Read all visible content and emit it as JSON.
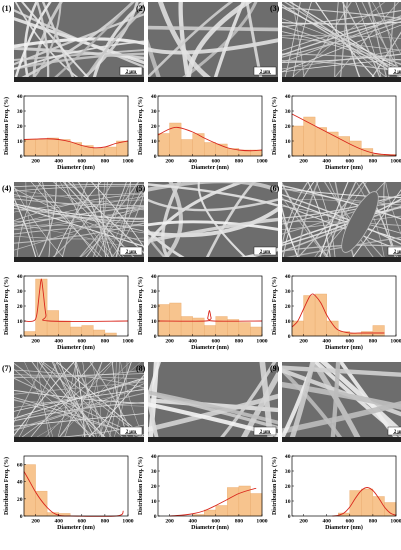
{
  "chart_data": [
    {
      "panel": "(1)",
      "type": "bar",
      "xlabel": "Diameter (nm)",
      "ylabel": "Distribution Freq. (%)",
      "xlim": [
        100,
        1000
      ],
      "ylim": [
        0,
        40
      ],
      "xticks": [
        200,
        400,
        600,
        800,
        1000
      ],
      "yticks": [
        0,
        10,
        20,
        30,
        40
      ],
      "bins": [
        [
          100,
          200,
          11
        ],
        [
          200,
          300,
          11
        ],
        [
          300,
          400,
          12
        ],
        [
          400,
          500,
          11
        ],
        [
          500,
          600,
          9
        ],
        [
          600,
          700,
          7
        ],
        [
          700,
          800,
          5
        ],
        [
          800,
          900,
          6
        ],
        [
          900,
          1000,
          10
        ]
      ],
      "fit": [
        [
          100,
          11
        ],
        [
          200,
          11.3
        ],
        [
          300,
          11.5
        ],
        [
          400,
          11
        ],
        [
          500,
          9.5
        ],
        [
          600,
          7
        ],
        [
          700,
          5.5
        ],
        [
          800,
          6
        ],
        [
          900,
          8.5
        ],
        [
          1000,
          10
        ]
      ],
      "scale_bar": "2 μm"
    },
    {
      "panel": "(2)",
      "type": "bar",
      "xlabel": "Diameter (nm)",
      "ylabel": "Distribution Freq. (%)",
      "xlim": [
        100,
        1000
      ],
      "ylim": [
        0,
        40
      ],
      "xticks": [
        200,
        400,
        600,
        800,
        1000
      ],
      "yticks": [
        0,
        10,
        20,
        30,
        40
      ],
      "bins": [
        [
          100,
          200,
          15
        ],
        [
          200,
          300,
          22
        ],
        [
          300,
          400,
          11
        ],
        [
          400,
          500,
          15
        ],
        [
          500,
          600,
          9
        ],
        [
          600,
          700,
          8
        ],
        [
          700,
          800,
          5
        ],
        [
          800,
          900,
          4
        ],
        [
          900,
          1000,
          4
        ]
      ],
      "fit": [
        [
          100,
          14
        ],
        [
          200,
          18
        ],
        [
          275,
          19
        ],
        [
          400,
          16
        ],
        [
          500,
          12
        ],
        [
          600,
          8.5
        ],
        [
          700,
          5.5
        ],
        [
          800,
          4
        ],
        [
          900,
          3.5
        ],
        [
          1000,
          4
        ]
      ],
      "scale_bar": "2 μm"
    },
    {
      "panel": "(3)",
      "type": "bar",
      "xlabel": "Diameter (nm)",
      "ylabel": "Distribution Freq. (%)",
      "xlim": [
        100,
        1000
      ],
      "ylim": [
        0,
        40
      ],
      "xticks": [
        200,
        400,
        600,
        800,
        1000
      ],
      "yticks": [
        0,
        10,
        20,
        30,
        40
      ],
      "bins": [
        [
          100,
          200,
          20
        ],
        [
          200,
          300,
          26
        ],
        [
          300,
          400,
          19
        ],
        [
          400,
          500,
          16
        ],
        [
          500,
          600,
          13
        ],
        [
          600,
          700,
          10
        ],
        [
          700,
          800,
          5
        ],
        [
          800,
          900,
          1
        ],
        [
          900,
          1000,
          1
        ]
      ],
      "fit": [
        [
          100,
          28
        ],
        [
          200,
          24
        ],
        [
          300,
          20
        ],
        [
          400,
          16
        ],
        [
          500,
          12
        ],
        [
          600,
          8
        ],
        [
          700,
          4.5
        ],
        [
          800,
          2
        ],
        [
          900,
          1
        ],
        [
          1000,
          0.5
        ]
      ],
      "scale_bar": "2 μm"
    },
    {
      "panel": "(4)",
      "type": "bar",
      "xlabel": "Diameter (nm)",
      "ylabel": "Distribution Freq. (%)",
      "xlim": [
        100,
        1000
      ],
      "ylim": [
        0,
        40
      ],
      "xticks": [
        200,
        400,
        600,
        800,
        1000
      ],
      "yticks": [
        0,
        10,
        20,
        30,
        40
      ],
      "bins": [
        [
          100,
          200,
          3
        ],
        [
          200,
          300,
          38
        ],
        [
          300,
          400,
          17
        ],
        [
          400,
          500,
          10
        ],
        [
          500,
          600,
          6
        ],
        [
          600,
          700,
          7
        ],
        [
          700,
          800,
          4
        ],
        [
          800,
          900,
          2
        ],
        [
          900,
          1000,
          0
        ]
      ],
      "fit": [
        [
          100,
          10
        ],
        [
          180,
          10
        ],
        [
          210,
          14
        ],
        [
          235,
          30
        ],
        [
          250,
          38
        ],
        [
          265,
          30
        ],
        [
          290,
          14
        ],
        [
          320,
          10
        ],
        [
          1000,
          10
        ]
      ],
      "scale_bar": "2 μm"
    },
    {
      "panel": "(5)",
      "type": "bar",
      "xlabel": "Diameter (nm)",
      "ylabel": "Distribution Freq. (%)",
      "xlim": [
        100,
        1000
      ],
      "ylim": [
        0,
        40
      ],
      "xticks": [
        200,
        400,
        600,
        800,
        1000
      ],
      "yticks": [
        0,
        10,
        20,
        30,
        40
      ],
      "bins": [
        [
          100,
          200,
          21
        ],
        [
          200,
          300,
          22
        ],
        [
          300,
          400,
          13
        ],
        [
          400,
          500,
          12
        ],
        [
          500,
          600,
          7
        ],
        [
          600,
          700,
          13
        ],
        [
          700,
          800,
          11
        ],
        [
          800,
          900,
          9
        ],
        [
          900,
          1000,
          6
        ]
      ],
      "fit": [
        [
          100,
          10
        ],
        [
          510,
          10
        ],
        [
          530,
          12
        ],
        [
          545,
          17
        ],
        [
          560,
          12
        ],
        [
          580,
          10
        ],
        [
          1000,
          10
        ]
      ],
      "scale_bar": "2 μm"
    },
    {
      "panel": "(6)",
      "type": "bar",
      "xlabel": "Diameter (nm)",
      "ylabel": "Distribution Freq. (%)",
      "xlim": [
        100,
        1000
      ],
      "ylim": [
        0,
        40
      ],
      "xticks": [
        200,
        400,
        600,
        800,
        1000
      ],
      "yticks": [
        0,
        10,
        20,
        30,
        40
      ],
      "bins": [
        [
          100,
          200,
          10
        ],
        [
          200,
          300,
          27
        ],
        [
          300,
          400,
          28
        ],
        [
          400,
          500,
          10
        ],
        [
          500,
          600,
          3
        ],
        [
          600,
          700,
          2
        ],
        [
          700,
          800,
          3
        ],
        [
          800,
          900,
          7
        ],
        [
          900,
          1000,
          0
        ]
      ],
      "fit": [
        [
          100,
          6
        ],
        [
          150,
          10
        ],
        [
          200,
          18
        ],
        [
          250,
          26
        ],
        [
          275,
          28
        ],
        [
          300,
          27
        ],
        [
          350,
          22
        ],
        [
          400,
          14
        ],
        [
          450,
          8
        ],
        [
          500,
          4
        ],
        [
          600,
          2
        ],
        [
          700,
          2
        ],
        [
          800,
          2
        ],
        [
          900,
          2
        ]
      ],
      "scale_bar": "2 μm"
    },
    {
      "panel": "(7)",
      "type": "bar",
      "xlabel": "Diameter (nm)",
      "ylabel": "Distribution Freq. (%)",
      "xlim": [
        100,
        1000
      ],
      "ylim": [
        0,
        70
      ],
      "xticks": [
        200,
        400,
        600,
        800,
        1000
      ],
      "yticks": [
        0,
        20,
        40,
        60
      ],
      "bins": [
        [
          100,
          200,
          60
        ],
        [
          200,
          300,
          29
        ],
        [
          300,
          400,
          4
        ],
        [
          400,
          500,
          3
        ],
        [
          500,
          600,
          0
        ],
        [
          600,
          700,
          0
        ],
        [
          700,
          800,
          0
        ],
        [
          800,
          900,
          0
        ],
        [
          900,
          1000,
          0
        ]
      ],
      "fit": [
        [
          100,
          52
        ],
        [
          150,
          40
        ],
        [
          200,
          28
        ],
        [
          250,
          18
        ],
        [
          300,
          10
        ],
        [
          350,
          4
        ],
        [
          400,
          1
        ],
        [
          450,
          0
        ],
        [
          500,
          0
        ],
        [
          900,
          0
        ],
        [
          960,
          6
        ]
      ],
      "scale_bar": "2 μm"
    },
    {
      "panel": "(8)",
      "type": "bar",
      "xlabel": "Diameter (nm)",
      "ylabel": "Distribution Freq. (%)",
      "xlim": [
        100,
        1000
      ],
      "ylim": [
        0,
        40
      ],
      "xticks": [
        200,
        400,
        600,
        800,
        1000
      ],
      "yticks": [
        0,
        10,
        20,
        30,
        40
      ],
      "bins": [
        [
          100,
          200,
          0
        ],
        [
          200,
          300,
          0
        ],
        [
          300,
          400,
          0
        ],
        [
          400,
          500,
          1
        ],
        [
          500,
          600,
          4
        ],
        [
          600,
          700,
          7
        ],
        [
          700,
          800,
          19
        ],
        [
          800,
          900,
          20
        ],
        [
          900,
          1000,
          15
        ]
      ],
      "fit": [
        [
          200,
          0
        ],
        [
          300,
          0.5
        ],
        [
          400,
          1.5
        ],
        [
          500,
          3.5
        ],
        [
          600,
          7
        ],
        [
          700,
          11
        ],
        [
          800,
          15
        ],
        [
          900,
          17.5
        ],
        [
          950,
          18.5
        ]
      ],
      "scale_bar": "2 μm"
    },
    {
      "panel": "(9)",
      "type": "bar",
      "xlabel": "Diameter (nm)",
      "ylabel": "Distribution Freq. (%)",
      "xlim": [
        100,
        1000
      ],
      "ylim": [
        0,
        40
      ],
      "xticks": [
        200,
        400,
        600,
        800,
        1000
      ],
      "yticks": [
        0,
        10,
        20,
        30,
        40
      ],
      "bins": [
        [
          100,
          200,
          0
        ],
        [
          200,
          300,
          0
        ],
        [
          300,
          400,
          0
        ],
        [
          400,
          500,
          0
        ],
        [
          500,
          600,
          2
        ],
        [
          600,
          700,
          17
        ],
        [
          700,
          800,
          18
        ],
        [
          800,
          900,
          13
        ],
        [
          900,
          1000,
          9
        ]
      ],
      "fit": [
        [
          450,
          0
        ],
        [
          500,
          0.5
        ],
        [
          550,
          2
        ],
        [
          600,
          6
        ],
        [
          650,
          12
        ],
        [
          700,
          17
        ],
        [
          750,
          19
        ],
        [
          800,
          17
        ],
        [
          850,
          12
        ],
        [
          900,
          6
        ],
        [
          950,
          2
        ],
        [
          1000,
          0.5
        ]
      ],
      "scale_bar": "2 μm"
    }
  ],
  "style": {
    "bar_fill": "#f7c48e",
    "bar_stroke": "#e8a86a",
    "fit_color": "#d9261c",
    "sem_base": "#7a7a7a"
  }
}
